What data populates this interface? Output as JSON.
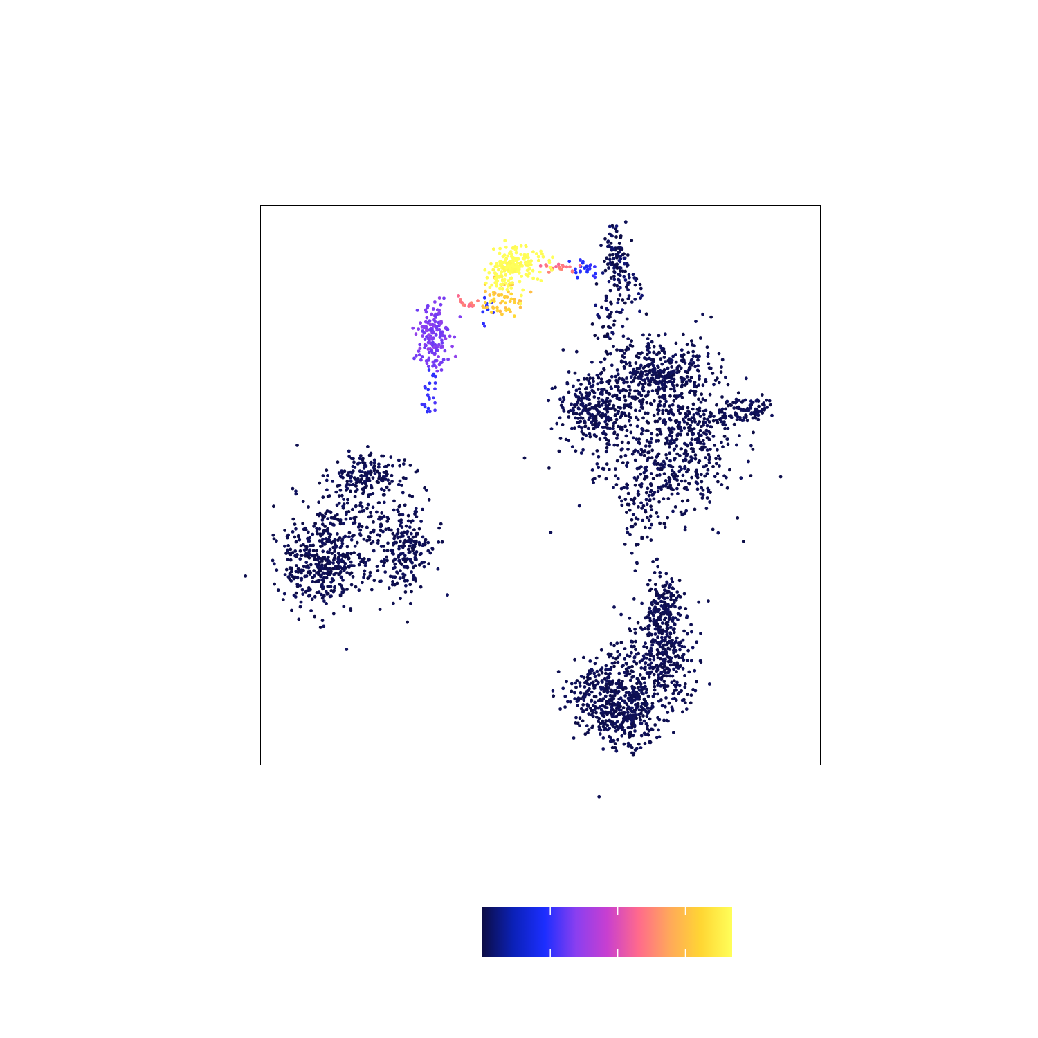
{
  "chart_data": {
    "type": "scatter",
    "title": "",
    "xlabel": "",
    "ylabel": "",
    "xlim": [
      0,
      100
    ],
    "ylim": [
      0,
      100
    ],
    "grid": false,
    "axis_ticks": false,
    "point_color_scale": [
      "#0d0d45",
      "#1c2eff",
      "#8a3ff0",
      "#ff6a8c",
      "#ffd633",
      "#ffff5a"
    ],
    "background_color": "#0d0d45",
    "clusters": [
      {
        "name": "left-island",
        "points": 900,
        "level": 0.0,
        "blobs": [
          [
            10.5,
            36,
            3.6,
            4.2,
            0.4
          ],
          [
            19,
            52,
            3.5,
            1.8,
            0.15
          ],
          [
            15.5,
            42,
            5.5,
            5.5,
            0.2
          ],
          [
            26,
            39,
            2.6,
            4.0,
            0.2
          ],
          [
            20,
            45,
            4,
            4,
            0.05
          ]
        ]
      },
      {
        "name": "upper-right-mass",
        "points": 1300,
        "level": 0.0,
        "blobs": [
          [
            60,
            63.5,
            3.0,
            3.0,
            0.2
          ],
          [
            71.5,
            70,
            4.5,
            2.8,
            0.25
          ],
          [
            70,
            61,
            8.0,
            7.0,
            0.25
          ],
          [
            73.5,
            52,
            5.0,
            4.0,
            0.15
          ],
          [
            78,
            60,
            4,
            5,
            0.1
          ],
          [
            68,
            44,
            2.2,
            3.6,
            0.05
          ]
        ]
      },
      {
        "name": "lower-right-mass",
        "points": 1050,
        "level": 0.0,
        "blobs": [
          [
            62.5,
            12.5,
            3.5,
            3.8,
            0.35
          ],
          [
            71.5,
            19,
            3.4,
            5.0,
            0.35
          ],
          [
            66,
            8,
            2.5,
            2.8,
            0.15
          ],
          [
            72,
            28,
            1.5,
            3.5,
            0.15
          ]
        ]
      },
      {
        "name": "right-tail",
        "points": 90,
        "level": 0.0,
        "blobs": [
          [
            89,
            64,
            1.0,
            0.9,
            0.4
          ],
          [
            85.5,
            63,
            1.7,
            1.2,
            0.45
          ],
          [
            82.5,
            62,
            1.0,
            1.0,
            0.15
          ]
        ]
      },
      {
        "name": "top-dark-spike",
        "points": 170,
        "level": 0.02,
        "blobs": [
          [
            63.5,
            91,
            1.2,
            2.5,
            0.55
          ],
          [
            66,
            85,
            1.5,
            1.8,
            0.2
          ],
          [
            62,
            80,
            1.2,
            3.5,
            0.25
          ]
        ]
      },
      {
        "name": "bridge-blue",
        "points": 30,
        "level": 0.22,
        "blobs": [
          [
            58,
            89,
            1.2,
            0.8,
            0.7
          ],
          [
            40.5,
            81,
            0.5,
            1.3,
            0.3
          ]
        ]
      },
      {
        "name": "purple-cluster",
        "points": 160,
        "level": 0.38,
        "blobs": [
          [
            31,
            76.5,
            1.4,
            3.0,
            1.0
          ]
        ]
      },
      {
        "name": "stem-blue",
        "points": 22,
        "level": 0.25,
        "blobs": [
          [
            30.5,
            66,
            0.8,
            3.2,
            1.0
          ]
        ]
      },
      {
        "name": "bridge-pink",
        "points": 30,
        "level": 0.62,
        "blobs": [
          [
            53,
            89,
            1.8,
            0.6,
            0.6
          ],
          [
            37.5,
            82.5,
            1.2,
            0.6,
            0.4
          ]
        ]
      },
      {
        "name": "orange-arc",
        "points": 55,
        "level": 0.78,
        "blobs": [
          [
            43.5,
            83.5,
            1.6,
            1.7,
            1.0
          ]
        ]
      },
      {
        "name": "yellow-peak",
        "points": 190,
        "level": 1.0,
        "blobs": [
          [
            45.5,
            89.5,
            2.4,
            1.4,
            0.8
          ],
          [
            43,
            86.5,
            1.6,
            1.6,
            0.2
          ]
        ]
      }
    ]
  },
  "colorbar": {
    "colors": [
      "#0d0d45",
      "#0b21b8",
      "#1c2eff",
      "#8a3ff0",
      "#c83fd0",
      "#ff6a8c",
      "#ffa85a",
      "#ffd633",
      "#ffff5a"
    ],
    "tick_positions": [
      0.272,
      0.542,
      0.813
    ],
    "tick_labels": []
  }
}
